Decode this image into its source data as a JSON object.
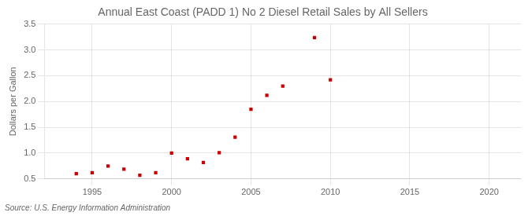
{
  "chart_data": {
    "type": "scatter",
    "title": "Annual East Coast (PADD 1) No 2 Diesel Retail Sales by All Sellers",
    "y_label": "Dollars per Gallon",
    "annotation": "Source: U.S. Energy Information Administration",
    "color": "#cc0000",
    "marker": "square",
    "x": [
      1994,
      1995,
      1996,
      1997,
      1998,
      1999,
      2000,
      2001,
      2002,
      2003,
      2004,
      2005,
      2006,
      2007,
      2009,
      2010
    ],
    "values": [
      0.6,
      0.62,
      0.75,
      0.69,
      0.57,
      0.62,
      1.0,
      0.89,
      0.82,
      1.01,
      1.31,
      1.85,
      2.12,
      2.3,
      3.24,
      2.42
    ],
    "xlim": [
      1992,
      2022
    ],
    "ylim": [
      0.5,
      3.5
    ],
    "xticks": [
      1995,
      2000,
      2005,
      2010,
      2015,
      2020
    ],
    "yticks": [
      0.5,
      {
        "value": 1.0,
        "label": "1.0"
      },
      1.5,
      {
        "value": 2.0,
        "label": "2.0"
      },
      2.5,
      {
        "value": 3.0,
        "label": "3.0"
      },
      3.5
    ],
    "grid": true
  }
}
